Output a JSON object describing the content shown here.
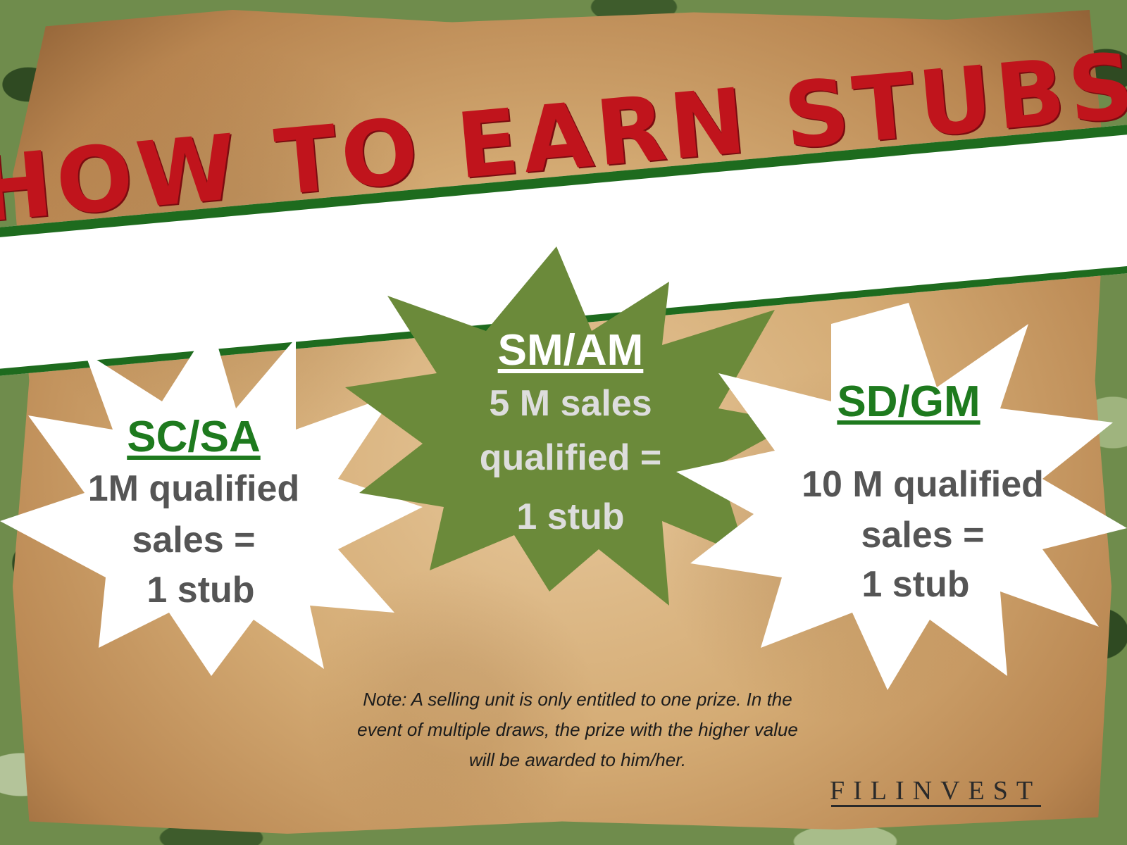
{
  "title": "HOW TO EARN STUBS",
  "colors": {
    "banner_green": "#1e6b1e",
    "title_red": "#c0141c",
    "burst_green": "#6b8a3a",
    "heading_green": "#1e7a1e",
    "body_gray": "#555555"
  },
  "tiers": [
    {
      "heading": "SC/SA",
      "line1": "1M qualified",
      "line2": "sales =",
      "line3": "1 stub"
    },
    {
      "heading": "SM/AM",
      "line1": "5 M sales",
      "line2": "qualified =",
      "line3": "1 stub"
    },
    {
      "heading": "SD/GM",
      "line1": "10 M qualified",
      "line2": "sales =",
      "line3": "1 stub"
    }
  ],
  "note": {
    "line1": "Note: A selling unit is only entitled to one prize. In the",
    "line2": "event of multiple draws, the prize with the higher value",
    "line3": "will be awarded to him/her."
  },
  "logo": "FILINVEST"
}
